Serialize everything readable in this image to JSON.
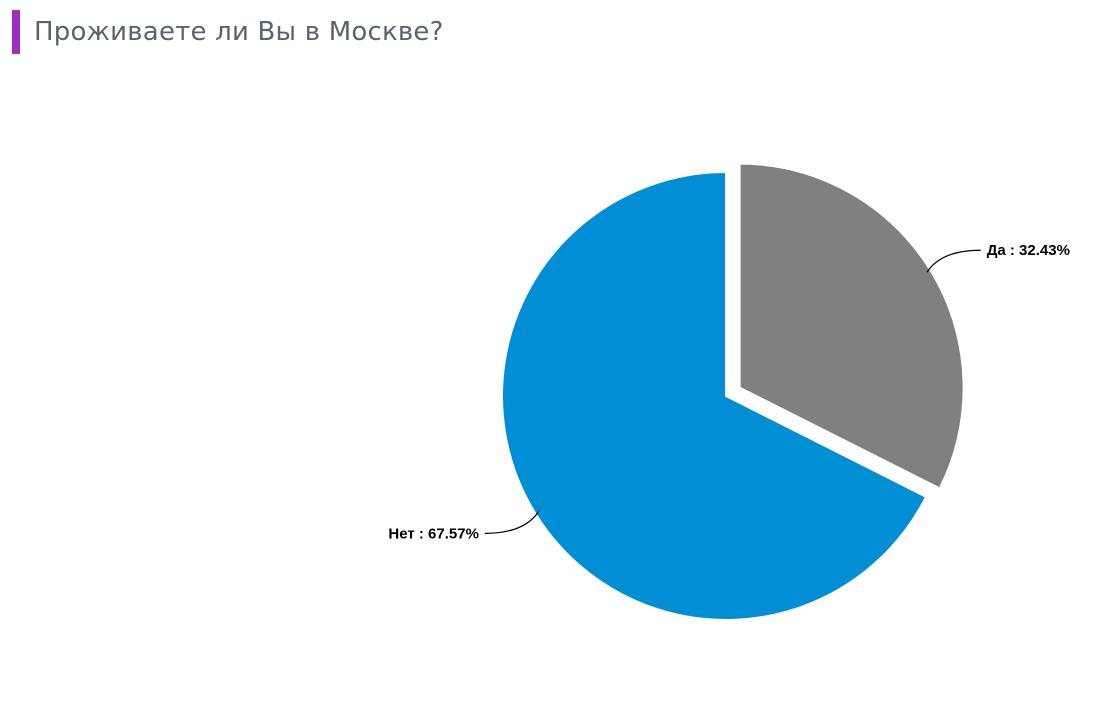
{
  "question": {
    "title": "Проживаете ли Вы в Москве?"
  },
  "colors": {
    "accent": "#9b30c4",
    "title_text": "#5a6370"
  },
  "chart_data": {
    "type": "pie",
    "slices": [
      {
        "name": "Да",
        "value": 32.43,
        "label": "Да : 32.43%",
        "color": "#808080",
        "exploded": true
      },
      {
        "name": "Нет",
        "value": 67.57,
        "label": "Нет : 67.57%",
        "color": "#008fd5",
        "exploded": false
      }
    ],
    "start_angle": "12 o'clock",
    "direction": "clockwise",
    "legend": "none"
  }
}
